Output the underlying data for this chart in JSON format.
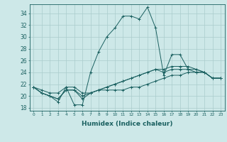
{
  "xlabel": "Humidex (Indice chaleur)",
  "background_color": "#cde8e8",
  "grid_color": "#aacccc",
  "line_color": "#1a6060",
  "xlim": [
    -0.5,
    23.5
  ],
  "ylim": [
    17.5,
    35.5
  ],
  "yticks": [
    18,
    20,
    22,
    24,
    26,
    28,
    30,
    32,
    34
  ],
  "xticks": [
    0,
    1,
    2,
    3,
    4,
    5,
    6,
    7,
    8,
    9,
    10,
    11,
    12,
    13,
    14,
    15,
    16,
    17,
    18,
    19,
    20,
    21,
    22,
    23
  ],
  "series": [
    [
      21.5,
      21.0,
      20.5,
      20.5,
      21.5,
      18.5,
      18.5,
      24.0,
      27.5,
      30.0,
      31.5,
      33.5,
      33.5,
      33.0,
      35.0,
      31.5,
      23.5,
      27.0,
      27.0,
      24.5,
      24.0,
      24.0,
      23.0,
      23.0
    ],
    [
      21.5,
      20.5,
      20.0,
      19.0,
      21.5,
      21.5,
      20.5,
      20.5,
      21.0,
      21.0,
      21.0,
      21.0,
      21.5,
      21.5,
      22.0,
      22.5,
      23.0,
      23.5,
      23.5,
      24.0,
      24.0,
      24.0,
      23.0,
      23.0
    ],
    [
      21.5,
      20.5,
      20.0,
      19.5,
      21.0,
      21.0,
      20.0,
      20.5,
      21.0,
      21.5,
      22.0,
      22.5,
      23.0,
      23.5,
      24.0,
      24.5,
      24.5,
      25.0,
      25.0,
      25.0,
      24.5,
      24.0,
      23.0,
      23.0
    ],
    [
      21.5,
      20.5,
      20.0,
      19.5,
      21.0,
      21.0,
      19.5,
      20.5,
      21.0,
      21.5,
      22.0,
      22.5,
      23.0,
      23.5,
      24.0,
      24.5,
      24.0,
      24.5,
      24.5,
      24.5,
      24.5,
      24.0,
      23.0,
      23.0
    ]
  ]
}
